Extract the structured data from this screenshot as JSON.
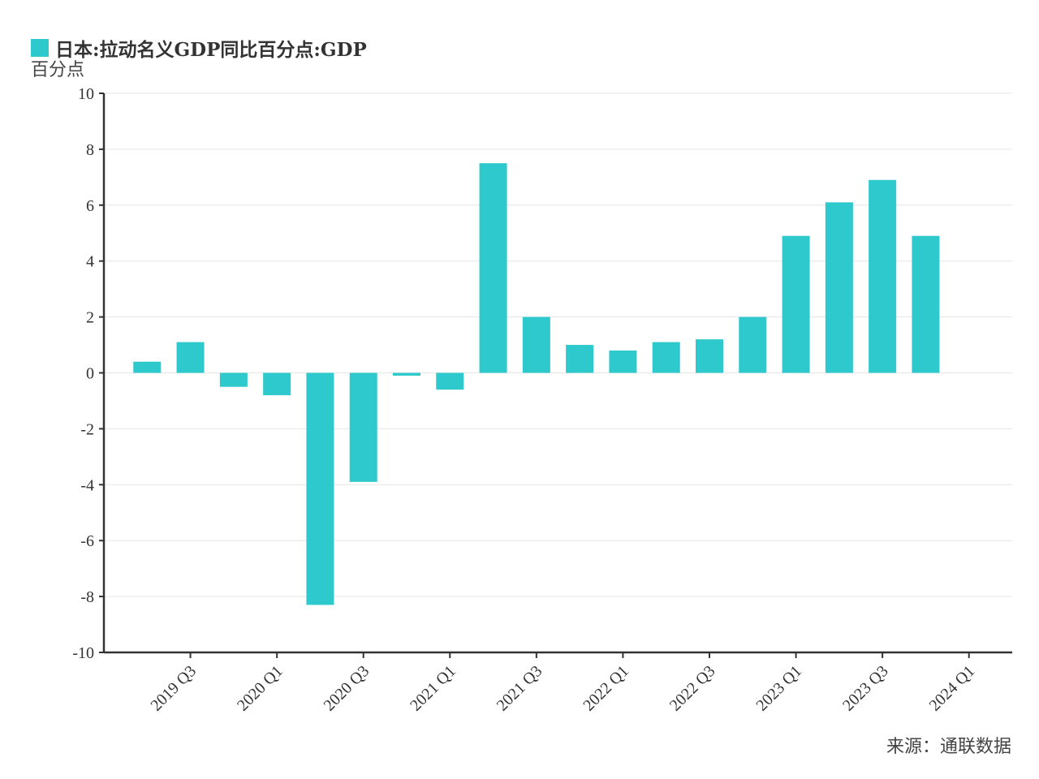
{
  "legend": {
    "label": "日本:拉动名义GDP同比百分点:GDP",
    "color": "#2ec9cc"
  },
  "unit": "百分点",
  "source": "来源：通联数据",
  "chart_data": {
    "type": "bar",
    "title": "",
    "xlabel": "",
    "ylabel": "百分点",
    "ylim": [
      -10,
      10
    ],
    "yticks": [
      10,
      8,
      6,
      4,
      2,
      0,
      -2,
      -4,
      -6,
      -8,
      -10
    ],
    "grid": true,
    "legend_position": "top-left",
    "categories": [
      "2019 Q2",
      "2019 Q3",
      "2019 Q4",
      "2020 Q1",
      "2020 Q2",
      "2020 Q3",
      "2020 Q4",
      "2021 Q1",
      "2021 Q2",
      "2021 Q3",
      "2021 Q4",
      "2022 Q1",
      "2022 Q2",
      "2022 Q3",
      "2022 Q4",
      "2023 Q1",
      "2023 Q2",
      "2023 Q3",
      "2023 Q4",
      "2024 Q1"
    ],
    "xtick_labels": [
      "2019 Q3",
      "2020 Q1",
      "2020 Q3",
      "2021 Q1",
      "2021 Q3",
      "2022 Q1",
      "2022 Q3",
      "2023 Q1",
      "2023 Q3",
      "2024 Q1"
    ],
    "series": [
      {
        "name": "日本:拉动名义GDP同比百分点:GDP",
        "color": "#2ec9cc",
        "values": [
          0.4,
          1.1,
          -0.5,
          -0.8,
          -8.3,
          -3.9,
          -0.1,
          -0.6,
          7.5,
          2.0,
          1.0,
          0.8,
          1.1,
          1.2,
          2.0,
          4.9,
          6.1,
          6.9,
          4.9,
          null
        ]
      }
    ]
  }
}
